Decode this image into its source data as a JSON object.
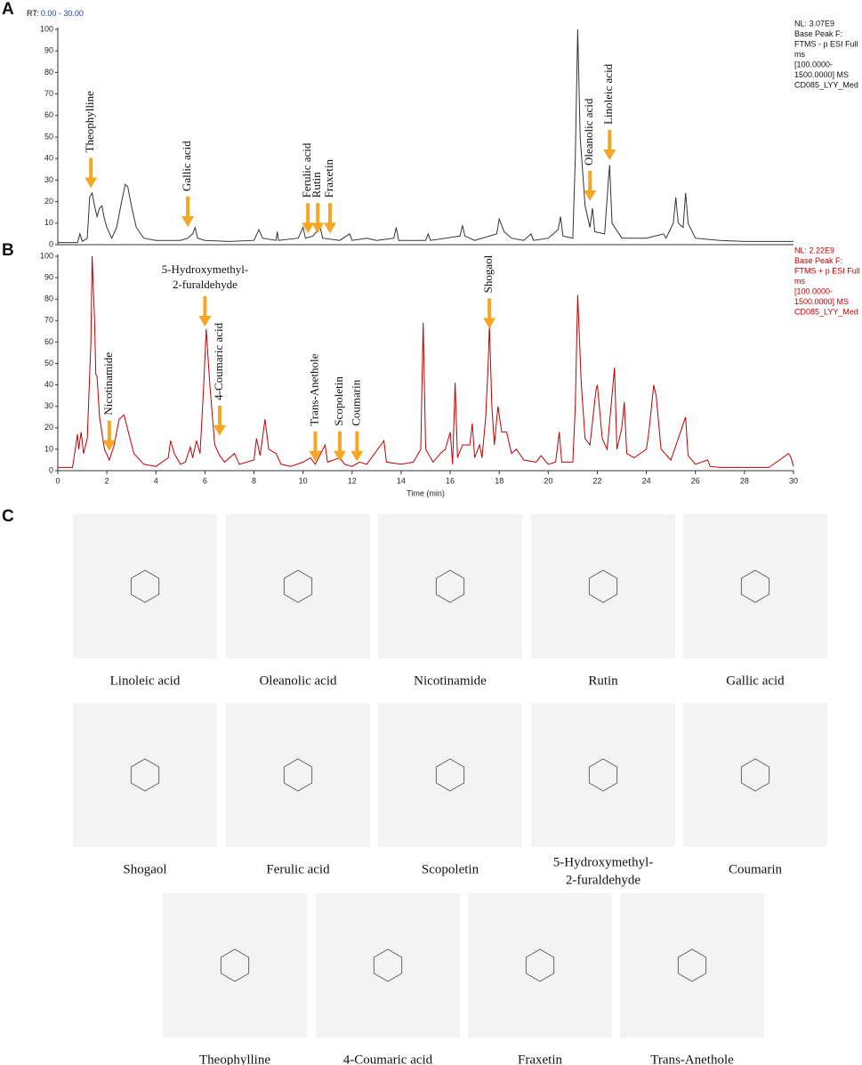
{
  "panels": [
    "A",
    "B",
    "C"
  ],
  "header": {
    "rt_label": "RT:",
    "rt_range": "0.00 - 30.00"
  },
  "chart_data": [
    {
      "type": "line",
      "xlim": [
        0,
        30
      ],
      "ylim": [
        0,
        100
      ],
      "yticks": [
        0,
        10,
        20,
        30,
        40,
        50,
        60,
        70,
        80,
        90,
        100
      ],
      "info": [
        "NL: 3.07E9",
        "Base Peak F:",
        "FTMS - p ESI Full",
        "ms",
        "[100.0000-",
        "1500.0000]  MS",
        "CD085_LYY_Med"
      ],
      "series": [
        {
          "color": "#333333",
          "x": [
            0,
            0.8,
            0.9,
            1.0,
            1.2,
            1.3,
            1.4,
            1.5,
            1.6,
            1.7,
            1.8,
            1.9,
            2.0,
            2.2,
            2.4,
            2.6,
            2.75,
            2.85,
            3.0,
            3.2,
            3.5,
            4,
            5,
            5.3,
            5.5,
            5.6,
            5.7,
            6,
            7,
            8,
            8.2,
            8.35,
            8.9,
            8.95,
            9.0,
            9.8,
            10.0,
            10.1,
            10.4,
            10.7,
            10.8,
            11.5,
            11.9,
            12.0,
            12.6,
            13,
            13.7,
            13.8,
            13.9,
            15,
            15.1,
            15.2,
            16.4,
            16.5,
            16.6,
            17,
            17.9,
            18,
            18.2,
            18.5,
            19,
            19.3,
            19.4,
            20,
            20.4,
            20.5,
            20.6,
            21,
            21.1,
            21.2,
            21.3,
            21.5,
            21.7,
            21.8,
            21.9,
            22.3,
            22.45,
            22.5,
            22.6,
            23,
            24,
            24.7,
            24.8,
            25.1,
            25.2,
            25.3,
            25.5,
            25.6,
            25.7,
            26,
            27,
            28,
            29,
            30
          ],
          "values": [
            1,
            1,
            5,
            1.5,
            3,
            22,
            24,
            18,
            13,
            17,
            18,
            12,
            8,
            3,
            8,
            20,
            28,
            27,
            18,
            8,
            3,
            2,
            2,
            3,
            5,
            8,
            3,
            2,
            1.5,
            2,
            7,
            3,
            2,
            6,
            2,
            3,
            8,
            3,
            4,
            8,
            3,
            2,
            5,
            2,
            3,
            2,
            3,
            8,
            2,
            2,
            5,
            2,
            4,
            9,
            4,
            2,
            5,
            12,
            6,
            3,
            2,
            5,
            2,
            3,
            7,
            13,
            4,
            3,
            40,
            100,
            50,
            18,
            8,
            17,
            6,
            5,
            30,
            37,
            10,
            3,
            3,
            5,
            3,
            10,
            22,
            10,
            8,
            24,
            10,
            3,
            2,
            1.5,
            1.5,
            1.5
          ]
        }
      ],
      "annotations": [
        {
          "text": "Theophylline",
          "x": 1.35,
          "y": 25
        },
        {
          "text": "Gallic acid",
          "x": 5.3,
          "y": 7
        },
        {
          "text": "Ferulic acid",
          "x": 10.2,
          "y": 4
        },
        {
          "text": "Rutin",
          "x": 10.6,
          "y": 4
        },
        {
          "text": "Fraxetin",
          "x": 11.1,
          "y": 4
        },
        {
          "text": "Oleanolic acid",
          "x": 21.7,
          "y": 19
        },
        {
          "text": "Linoleic acid",
          "x": 22.5,
          "y": 38
        }
      ]
    },
    {
      "type": "line",
      "xlabel": "Time (min)",
      "xlim": [
        0,
        30
      ],
      "xticks": [
        0,
        2,
        4,
        6,
        8,
        10,
        12,
        14,
        16,
        18,
        20,
        22,
        24,
        26,
        28,
        30
      ],
      "ylim": [
        0,
        100
      ],
      "yticks": [
        0,
        10,
        20,
        30,
        40,
        50,
        60,
        70,
        80,
        90,
        100
      ],
      "info": [
        "NL: 2.22E9",
        "Base Peak F:",
        "FTMS + p ESI Full",
        "ms",
        "[100.0000-",
        "1500.0000]  MS",
        "CD085_LYY_Med"
      ],
      "series": [
        {
          "color": "#c00000",
          "x": [
            0,
            0.6,
            0.8,
            0.85,
            0.95,
            1.05,
            1.2,
            1.35,
            1.4,
            1.5,
            1.55,
            1.6,
            1.7,
            1.9,
            2.1,
            2.3,
            2.5,
            2.7,
            2.9,
            3.1,
            3.5,
            4,
            4.5,
            4.6,
            4.75,
            5,
            5.2,
            5.4,
            5.5,
            5.65,
            5.8,
            5.95,
            6.05,
            6.2,
            6.4,
            6.6,
            6.8,
            7.2,
            7.4,
            8,
            8.1,
            8.25,
            8.45,
            8.6,
            8.9,
            9.1,
            9.5,
            10,
            10.3,
            10.5,
            10.9,
            11,
            11.5,
            11.7,
            12,
            12.3,
            12.6,
            13.3,
            13.4,
            14,
            14.5,
            14.8,
            14.9,
            15.0,
            15.3,
            15.6,
            15.8,
            16,
            16.1,
            16.2,
            16.3,
            16.5,
            16.8,
            16.9,
            17,
            17.2,
            17.3,
            17.45,
            17.55,
            17.6,
            17.7,
            17.8,
            17.95,
            18.1,
            18.3,
            18.5,
            18.7,
            19,
            19.5,
            19.7,
            20,
            20.3,
            20.45,
            20.55,
            21,
            21.1,
            21.2,
            21.35,
            21.5,
            21.7,
            21.95,
            22,
            22.2,
            22.4,
            22.7,
            22.8,
            23,
            23.1,
            23.2,
            23.5,
            24,
            24.1,
            24.3,
            24.4,
            24.6,
            25,
            25.6,
            25.7,
            26,
            26.5,
            26.6,
            27,
            29,
            29.8,
            29.9,
            30
          ],
          "values": [
            1.5,
            1.5,
            17,
            10,
            18,
            8,
            15,
            60,
            100,
            70,
            45,
            44,
            25,
            10,
            5,
            12,
            24,
            26,
            17,
            8,
            3,
            2,
            6,
            14,
            8,
            3,
            4,
            11,
            6,
            14,
            8,
            40,
            66,
            40,
            12,
            7,
            4,
            8,
            3,
            5,
            15,
            7,
            24,
            10,
            8,
            3,
            2,
            4,
            6,
            3,
            12,
            4,
            6,
            3,
            2,
            4,
            3,
            14,
            4,
            3,
            4,
            10,
            69,
            10,
            4,
            8,
            10,
            18,
            3,
            41,
            6,
            12,
            12,
            22,
            6,
            12,
            6,
            25,
            50,
            68,
            30,
            12,
            30,
            18,
            18,
            8,
            10,
            5,
            4,
            7,
            3,
            4,
            18,
            4,
            4,
            30,
            82,
            40,
            15,
            12,
            38,
            40,
            15,
            10,
            48,
            10,
            20,
            32,
            8,
            6,
            10,
            18,
            40,
            35,
            10,
            5,
            25,
            7,
            3,
            5,
            2,
            1.5,
            1.5,
            8,
            6,
            2
          ]
        }
      ],
      "annotations": [
        {
          "text": "Nicotinamide",
          "x": 2.1,
          "y": 8
        },
        {
          "text": [
            "5-Hydroxymethyl-",
            "2-furaldehyde"
          ],
          "x": 6.0,
          "y": 66
        },
        {
          "text": "4-Coumaric acid",
          "x": 6.6,
          "y": 15
        },
        {
          "text": "Trans-Anethole",
          "x": 10.5,
          "y": 3
        },
        {
          "text": "Scopoletin",
          "x": 11.5,
          "y": 3
        },
        {
          "text": "Coumarin",
          "x": 12.2,
          "y": 3
        },
        {
          "text": "Shogaol",
          "x": 17.6,
          "y": 65
        }
      ]
    }
  ],
  "compounds": [
    "Linoleic acid",
    "Oleanolic acid",
    "Nicotinamide",
    "Rutin",
    "Gallic acid",
    "Shogaol",
    "Ferulic acid",
    "Scopoletin",
    [
      "5-Hydroxymethyl-",
      "2-furaldehyde"
    ],
    "Coumarin",
    "Theophylline",
    "4-Coumaric acid",
    "Fraxetin",
    "Trans-Anethole"
  ]
}
